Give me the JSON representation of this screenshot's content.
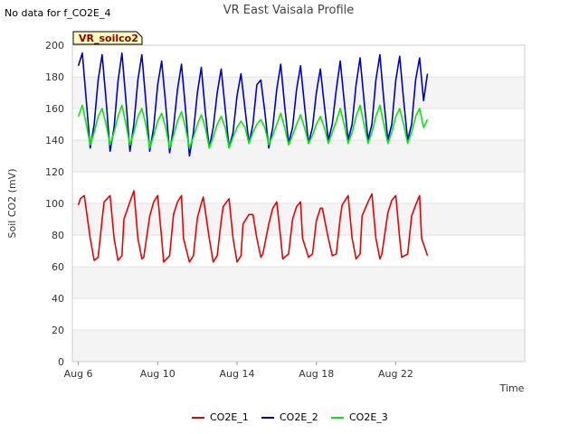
{
  "note": "No data for f_CO2E_4",
  "chart_data": {
    "type": "line",
    "title": "VR East Vaisala Profile",
    "badge": "VR_soilco2",
    "xlabel": "Time",
    "ylabel": "Soil CO2 (mV)",
    "x_start": "2023-08-06",
    "x_end": "2023-08-23",
    "xlim": [
      -0.3,
      22.5
    ],
    "ylim": [
      0,
      200
    ],
    "yticks": [
      0,
      20,
      40,
      60,
      80,
      100,
      120,
      140,
      160,
      180,
      200
    ],
    "xticks": [
      {
        "day": 0,
        "label": "Aug 6"
      },
      {
        "day": 4,
        "label": "Aug 10"
      },
      {
        "day": 8,
        "label": "Aug 14"
      },
      {
        "day": 12,
        "label": "Aug 18"
      },
      {
        "day": 16,
        "label": "Aug 22"
      }
    ],
    "grid": true,
    "legend_position": "bottom",
    "series": [
      {
        "name": "CO2E_1",
        "color": "#ee0000",
        "x": [
          0.0,
          0.1,
          0.3,
          0.6,
          0.8,
          1.0,
          1.2,
          1.3,
          1.6,
          1.8,
          2.0,
          2.2,
          2.3,
          2.6,
          2.8,
          3.0,
          3.2,
          3.3,
          3.6,
          3.8,
          4.0,
          4.2,
          4.3,
          4.6,
          4.8,
          5.0,
          5.2,
          5.3,
          5.6,
          5.8,
          6.0,
          6.2,
          6.3,
          6.6,
          6.8,
          7.0,
          7.2,
          7.3,
          7.6,
          7.8,
          8.0,
          8.2,
          8.3,
          8.6,
          8.8,
          9.0,
          9.2,
          9.3,
          9.6,
          9.8,
          10.0,
          10.2,
          10.3,
          10.6,
          10.8,
          11.0,
          11.2,
          11.3,
          11.6,
          11.8,
          12.0,
          12.2,
          12.3,
          12.6,
          12.8,
          13.0,
          13.2,
          13.3,
          13.6,
          13.8,
          14.0,
          14.2,
          14.3,
          14.6,
          14.8,
          15.0,
          15.2,
          15.3,
          15.6,
          15.8,
          16.0,
          16.2,
          16.3,
          16.6,
          16.8,
          17.0,
          17.2,
          17.3,
          17.6
        ],
        "values": [
          99,
          103,
          105,
          78,
          64,
          66,
          90,
          101,
          105,
          78,
          64,
          67,
          90,
          101,
          108,
          78,
          65,
          66,
          92,
          101,
          105,
          78,
          63,
          67,
          93,
          101,
          105,
          78,
          63,
          67,
          91,
          100,
          104,
          78,
          63,
          67,
          89,
          98,
          103,
          78,
          63,
          67,
          87,
          93,
          93,
          78,
          66,
          68,
          87,
          97,
          101,
          78,
          65,
          68,
          90,
          98,
          101,
          78,
          66,
          68,
          89,
          97,
          97,
          78,
          67,
          68,
          91,
          99,
          105,
          78,
          65,
          68,
          92,
          101,
          106,
          78,
          65,
          68,
          94,
          102,
          105,
          78,
          66,
          68,
          92,
          99,
          105,
          78,
          67
        ]
      },
      {
        "name": "CO2E_2",
        "color": "#0000cc",
        "x": [
          0.0,
          0.2,
          0.4,
          0.6,
          0.8,
          1.0,
          1.2,
          1.4,
          1.6,
          1.8,
          2.0,
          2.2,
          2.4,
          2.6,
          2.8,
          3.0,
          3.2,
          3.4,
          3.6,
          3.8,
          4.0,
          4.2,
          4.4,
          4.6,
          4.8,
          5.0,
          5.2,
          5.4,
          5.6,
          5.8,
          6.0,
          6.2,
          6.4,
          6.6,
          6.8,
          7.0,
          7.2,
          7.4,
          7.6,
          7.8,
          8.0,
          8.2,
          8.4,
          8.6,
          8.8,
          9.0,
          9.2,
          9.4,
          9.6,
          9.8,
          10.0,
          10.2,
          10.4,
          10.6,
          10.8,
          11.0,
          11.2,
          11.4,
          11.6,
          11.8,
          12.0,
          12.2,
          12.4,
          12.6,
          12.8,
          13.0,
          13.2,
          13.4,
          13.6,
          13.8,
          14.0,
          14.2,
          14.4,
          14.6,
          14.8,
          15.0,
          15.2,
          15.4,
          15.6,
          15.8,
          16.0,
          16.2,
          16.4,
          16.6,
          16.8,
          17.0,
          17.2,
          17.4,
          17.6
        ],
        "values": [
          187,
          195,
          165,
          135,
          150,
          178,
          194,
          165,
          133,
          148,
          177,
          195,
          165,
          133,
          150,
          178,
          194,
          165,
          133,
          148,
          175,
          190,
          163,
          132,
          148,
          172,
          188,
          160,
          130,
          145,
          170,
          186,
          158,
          135,
          148,
          170,
          185,
          160,
          135,
          145,
          168,
          182,
          160,
          138,
          150,
          175,
          178,
          158,
          135,
          148,
          172,
          188,
          162,
          138,
          148,
          172,
          187,
          162,
          138,
          148,
          170,
          185,
          162,
          140,
          150,
          172,
          190,
          165,
          140,
          150,
          175,
          192,
          165,
          140,
          150,
          178,
          194,
          165,
          140,
          150,
          178,
          193,
          165,
          140,
          150,
          178,
          192,
          165,
          182
        ]
      },
      {
        "name": "CO2E_3",
        "color": "#00ee00",
        "x": [
          0.0,
          0.2,
          0.4,
          0.6,
          0.8,
          1.0,
          1.2,
          1.4,
          1.6,
          1.8,
          2.0,
          2.2,
          2.4,
          2.6,
          2.8,
          3.0,
          3.2,
          3.4,
          3.6,
          3.8,
          4.0,
          4.2,
          4.4,
          4.6,
          4.8,
          5.0,
          5.2,
          5.4,
          5.6,
          5.8,
          6.0,
          6.2,
          6.4,
          6.6,
          6.8,
          7.0,
          7.2,
          7.4,
          7.6,
          7.8,
          8.0,
          8.2,
          8.4,
          8.6,
          8.8,
          9.0,
          9.2,
          9.4,
          9.6,
          9.8,
          10.0,
          10.2,
          10.4,
          10.6,
          10.8,
          11.0,
          11.2,
          11.4,
          11.6,
          11.8,
          12.0,
          12.2,
          12.4,
          12.6,
          12.8,
          13.0,
          13.2,
          13.4,
          13.6,
          13.8,
          14.0,
          14.2,
          14.4,
          14.6,
          14.8,
          15.0,
          15.2,
          15.4,
          15.6,
          15.8,
          16.0,
          16.2,
          16.4,
          16.6,
          16.8,
          17.0,
          17.2,
          17.4,
          17.6
        ],
        "values": [
          155,
          162,
          150,
          137,
          145,
          155,
          160,
          150,
          137,
          145,
          155,
          162,
          150,
          137,
          145,
          155,
          160,
          150,
          135,
          143,
          152,
          157,
          148,
          135,
          143,
          152,
          158,
          148,
          135,
          142,
          150,
          156,
          148,
          135,
          142,
          150,
          155,
          148,
          135,
          142,
          148,
          152,
          148,
          138,
          145,
          150,
          153,
          148,
          137,
          143,
          150,
          157,
          148,
          137,
          143,
          150,
          156,
          148,
          138,
          143,
          150,
          155,
          148,
          138,
          145,
          152,
          160,
          150,
          138,
          145,
          155,
          162,
          150,
          138,
          145,
          155,
          162,
          150,
          138,
          145,
          155,
          160,
          150,
          138,
          145,
          155,
          160,
          148,
          153
        ]
      }
    ]
  }
}
